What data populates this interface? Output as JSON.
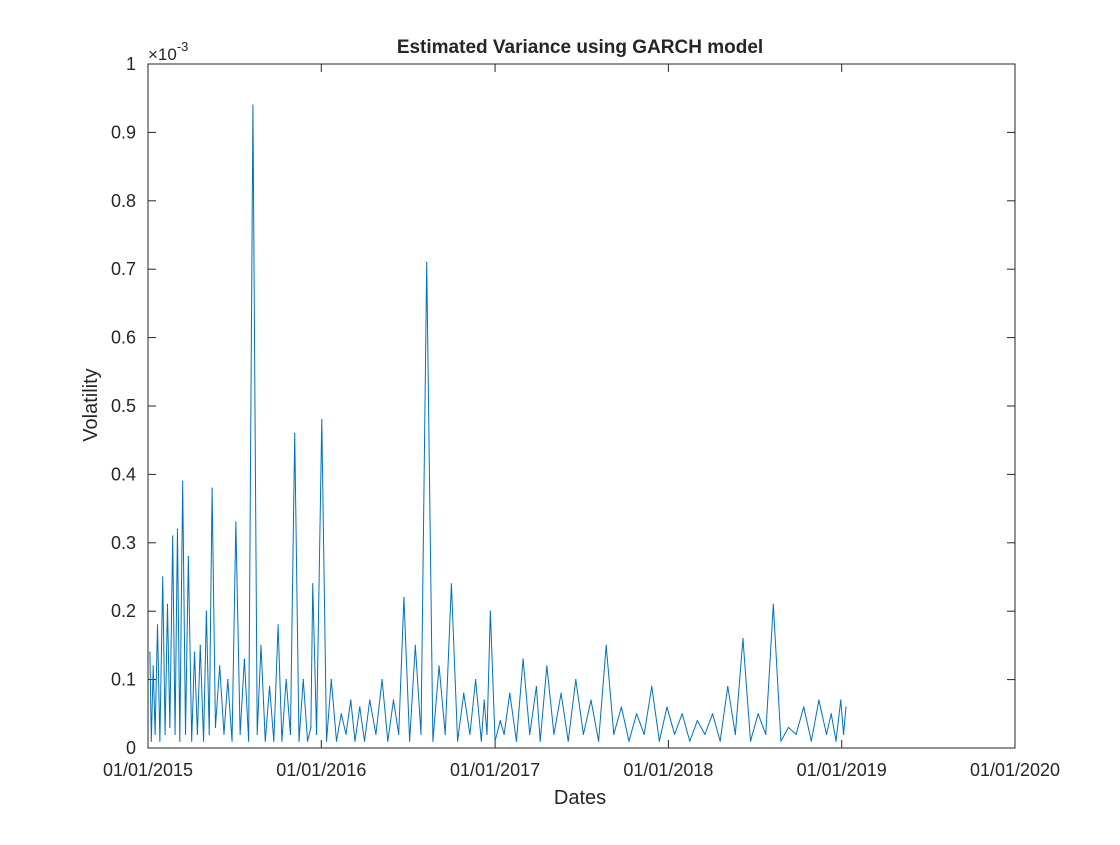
{
  "chart_data": {
    "type": "line",
    "title": "Estimated Variance using GARCH model",
    "xlabel": "Dates",
    "ylabel": "Volatility",
    "y_exponent_label": "×10",
    "y_exponent_power": "-3",
    "y_scale_factor": 0.001,
    "xlim": [
      "2015-01-01",
      "2020-01-01"
    ],
    "ylim": [
      0,
      1
    ],
    "x_ticks": [
      "01/01/2015",
      "01/01/2016",
      "01/01/2017",
      "01/01/2018",
      "01/01/2019",
      "01/01/2020"
    ],
    "y_ticks": [
      "0",
      "0.1",
      "0.2",
      "0.3",
      "0.4",
      "0.5",
      "0.6",
      "0.7",
      "0.8",
      "0.9",
      "1"
    ],
    "grid": false,
    "series": [
      {
        "color": "#0072BD",
        "x": [
          "2015-01-05",
          "2015-01-08",
          "2015-01-12",
          "2015-01-16",
          "2015-01-21",
          "2015-01-26",
          "2015-02-01",
          "2015-02-06",
          "2015-02-11",
          "2015-02-16",
          "2015-02-22",
          "2015-02-27",
          "2015-03-04",
          "2015-03-09",
          "2015-03-15",
          "2015-03-21",
          "2015-03-27",
          "2015-04-03",
          "2015-04-09",
          "2015-04-15",
          "2015-04-21",
          "2015-04-28",
          "2015-05-04",
          "2015-05-10",
          "2015-05-16",
          "2015-05-23",
          "2015-06-01",
          "2015-06-10",
          "2015-06-18",
          "2015-06-27",
          "2015-07-05",
          "2015-07-14",
          "2015-07-23",
          "2015-08-01",
          "2015-08-10",
          "2015-08-19",
          "2015-08-27",
          "2015-09-05",
          "2015-09-14",
          "2015-09-23",
          "2015-10-02",
          "2015-10-10",
          "2015-10-19",
          "2015-10-28",
          "2015-11-06",
          "2015-11-15",
          "2015-11-24",
          "2015-12-03",
          "2015-12-10",
          "2015-12-14",
          "2015-12-22",
          "2016-01-02",
          "2016-01-12",
          "2016-01-22",
          "2016-02-02",
          "2016-02-12",
          "2016-02-22",
          "2016-03-03",
          "2016-03-12",
          "2016-03-22",
          "2016-04-01",
          "2016-04-12",
          "2016-04-25",
          "2016-05-08",
          "2016-05-20",
          "2016-06-01",
          "2016-06-12",
          "2016-06-23",
          "2016-07-05",
          "2016-07-17",
          "2016-07-29",
          "2016-08-10",
          "2016-08-23",
          "2016-09-05",
          "2016-09-18",
          "2016-10-01",
          "2016-10-14",
          "2016-10-27",
          "2016-11-09",
          "2016-11-21",
          "2016-12-03",
          "2016-12-09",
          "2016-12-15",
          "2016-12-22",
          "2017-01-01",
          "2017-01-12",
          "2017-01-20",
          "2017-02-01",
          "2017-02-15",
          "2017-03-01",
          "2017-03-15",
          "2017-03-29",
          "2017-04-06",
          "2017-04-20",
          "2017-05-05",
          "2017-05-20",
          "2017-06-04",
          "2017-06-20",
          "2017-07-06",
          "2017-07-22",
          "2017-08-07",
          "2017-08-23",
          "2017-09-08",
          "2017-09-24",
          "2017-10-10",
          "2017-10-26",
          "2017-11-11",
          "2017-11-27",
          "2017-12-13",
          "2017-12-29",
          "2018-01-14",
          "2018-01-30",
          "2018-02-15",
          "2018-03-03",
          "2018-03-19",
          "2018-04-04",
          "2018-04-20",
          "2018-05-06",
          "2018-05-22",
          "2018-06-07",
          "2018-06-23",
          "2018-07-09",
          "2018-07-25",
          "2018-08-10",
          "2018-08-26",
          "2018-09-11",
          "2018-09-27",
          "2018-10-13",
          "2018-10-29",
          "2018-11-14",
          "2018-11-30",
          "2018-12-10",
          "2018-12-20",
          "2018-12-30",
          "2019-01-05",
          "2019-01-10"
        ],
        "y": [
          0.14,
          0.01,
          0.12,
          0.02,
          0.18,
          0.01,
          0.25,
          0.02,
          0.21,
          0.03,
          0.31,
          0.02,
          0.32,
          0.01,
          0.39,
          0.02,
          0.28,
          0.01,
          0.14,
          0.02,
          0.15,
          0.01,
          0.2,
          0.02,
          0.38,
          0.03,
          0.12,
          0.02,
          0.1,
          0.01,
          0.33,
          0.02,
          0.13,
          0.01,
          0.94,
          0.02,
          0.15,
          0.01,
          0.09,
          0.01,
          0.18,
          0.01,
          0.1,
          0.02,
          0.46,
          0.01,
          0.1,
          0.01,
          0.03,
          0.24,
          0.02,
          0.48,
          0.01,
          0.1,
          0.01,
          0.05,
          0.02,
          0.07,
          0.01,
          0.06,
          0.01,
          0.07,
          0.02,
          0.1,
          0.01,
          0.07,
          0.02,
          0.22,
          0.01,
          0.15,
          0.02,
          0.71,
          0.01,
          0.12,
          0.02,
          0.24,
          0.01,
          0.08,
          0.02,
          0.1,
          0.01,
          0.07,
          0.02,
          0.2,
          0.01,
          0.04,
          0.02,
          0.08,
          0.01,
          0.13,
          0.02,
          0.09,
          0.01,
          0.12,
          0.02,
          0.08,
          0.01,
          0.1,
          0.02,
          0.07,
          0.01,
          0.15,
          0.02,
          0.06,
          0.01,
          0.05,
          0.02,
          0.09,
          0.01,
          0.06,
          0.02,
          0.05,
          0.01,
          0.04,
          0.02,
          0.05,
          0.01,
          0.09,
          0.02,
          0.16,
          0.01,
          0.05,
          0.02,
          0.21,
          0.01,
          0.03,
          0.02,
          0.06,
          0.01,
          0.07,
          0.02,
          0.05,
          0.01,
          0.07,
          0.02,
          0.06
        ]
      }
    ]
  }
}
